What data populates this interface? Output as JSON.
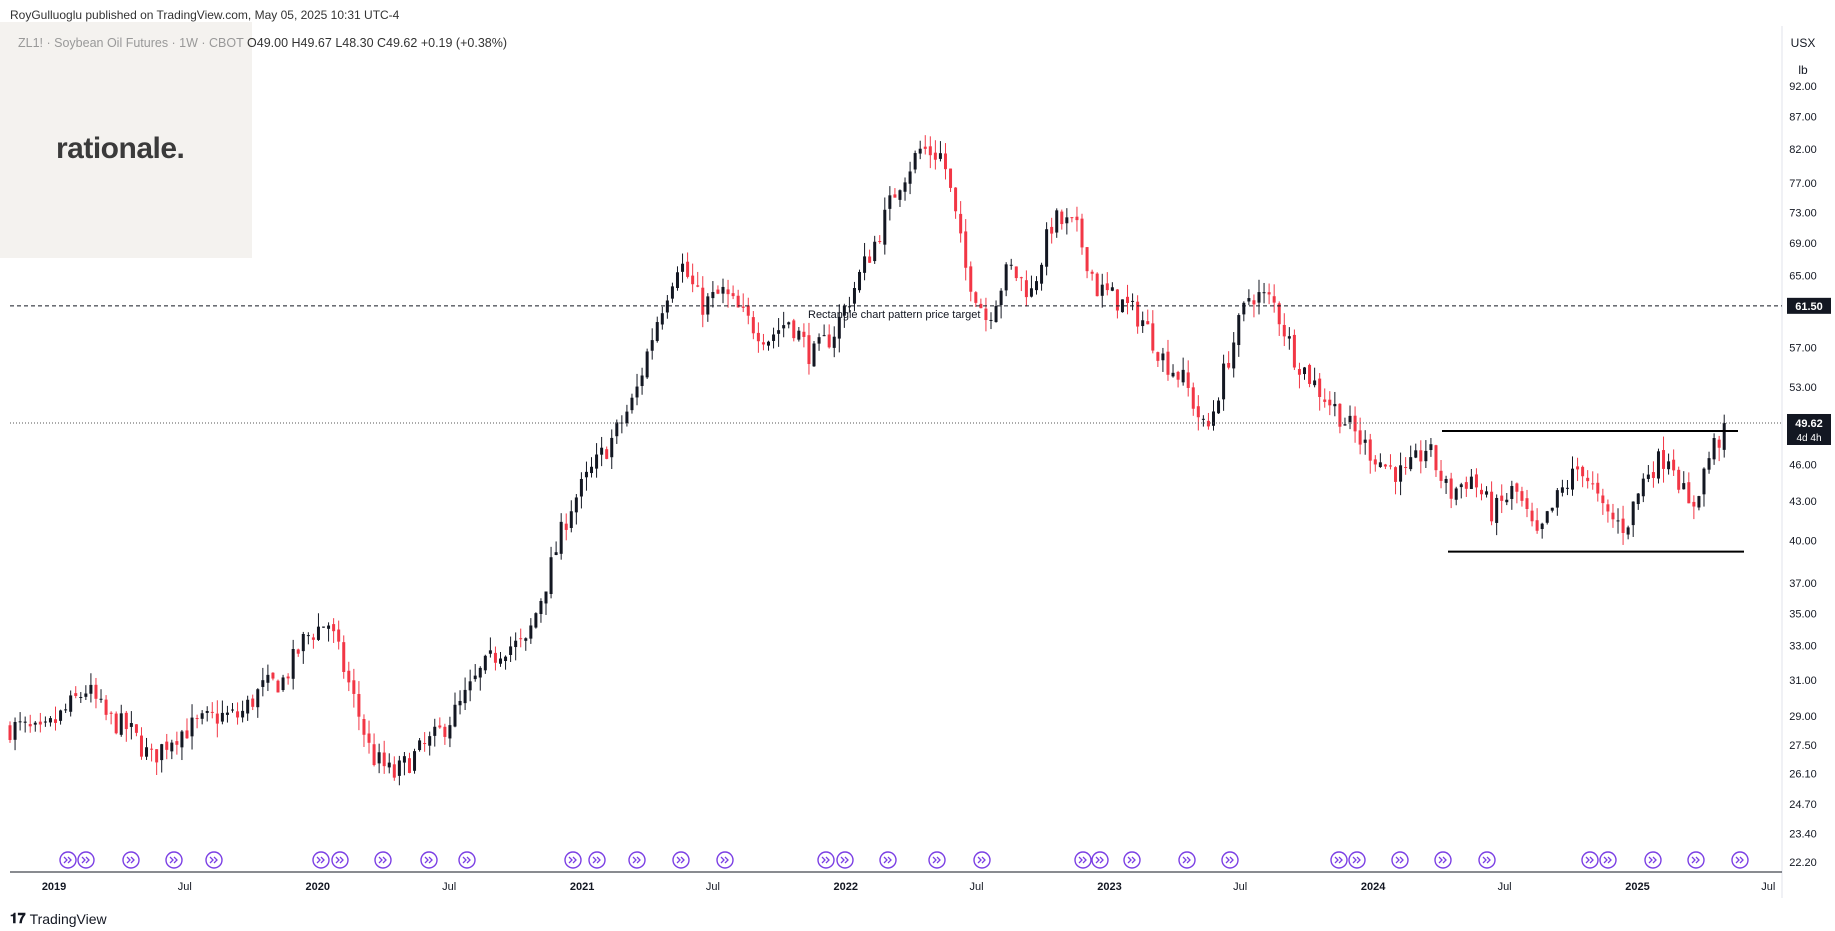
{
  "header": {
    "publisher": "RoyGulluoglu published on TradingView.com,",
    "timestamp": "May 05, 2025 10:31 UTC-4"
  },
  "symbol": {
    "name": "ZL1! · Soybean Oil Futures · 1W · CBOT",
    "open": "O49.00",
    "high": "H49.67",
    "low": "L48.30",
    "close": "C49.62",
    "change": "+0.19 (+0.38%)"
  },
  "watermark": {
    "text": "rationale."
  },
  "currency": {
    "line1": "USX",
    "line2": "lb"
  },
  "footer": {
    "brand": "TradingView",
    "icon": "tradingview-logo-icon"
  },
  "colors": {
    "up": "#131722",
    "down": "#f23645",
    "price_line": "#555555",
    "event_icon": "#7b3fe4"
  },
  "chart_data": {
    "type": "candlestick",
    "timeframe": "1W",
    "scale": "log",
    "y_axis_ticks": [
      92.0,
      87.0,
      82.0,
      77.0,
      73.0,
      69.0,
      65.0,
      61.5,
      57.0,
      53.0,
      49.62,
      46.0,
      43.0,
      40.0,
      37.0,
      35.0,
      33.0,
      31.0,
      29.0,
      27.5,
      26.1,
      24.7,
      23.4,
      22.2
    ],
    "ylim": [
      22.2,
      92.0
    ],
    "x_axis_labels": [
      "2019",
      "Jul",
      "2020",
      "Jul",
      "2021",
      "Jul",
      "2022",
      "Jul",
      "2023",
      "Jul",
      "2024",
      "Jul",
      "2025",
      "Jul"
    ],
    "current_price": {
      "value": "49.62",
      "countdown": "4d 4h"
    },
    "target_line": {
      "value": 61.5,
      "label": "61.50",
      "annotation": "Rectangle chart pattern price target"
    },
    "rectangle_pattern": {
      "resistance": 48.9,
      "support": 39.2
    },
    "monthly_closes": [
      [
        "2018-11",
        28.4
      ],
      [
        "2018-12",
        28.0
      ],
      [
        "2019-01",
        29.2
      ],
      [
        "2019-02",
        30.5
      ],
      [
        "2019-03",
        28.9
      ],
      [
        "2019-04",
        28.3
      ],
      [
        "2019-05",
        26.8
      ],
      [
        "2019-06",
        28.0
      ],
      [
        "2019-07",
        28.5
      ],
      [
        "2019-08",
        29.0
      ],
      [
        "2019-09",
        29.0
      ],
      [
        "2019-10",
        30.5
      ],
      [
        "2019-11",
        31.0
      ],
      [
        "2019-12",
        33.5
      ],
      [
        "2020-01",
        34.5
      ],
      [
        "2020-02",
        30.5
      ],
      [
        "2020-03",
        27.0
      ],
      [
        "2020-04",
        26.0
      ],
      [
        "2020-05",
        27.0
      ],
      [
        "2020-06",
        28.0
      ],
      [
        "2020-07",
        29.5
      ],
      [
        "2020-08",
        31.5
      ],
      [
        "2020-09",
        33.0
      ],
      [
        "2020-10",
        33.0
      ],
      [
        "2020-11",
        37.5
      ],
      [
        "2020-12",
        42.5
      ],
      [
        "2021-01",
        45.5
      ],
      [
        "2021-02",
        48.5
      ],
      [
        "2021-03",
        52.0
      ],
      [
        "2021-04",
        60.0
      ],
      [
        "2021-05",
        67.0
      ],
      [
        "2021-06",
        61.5
      ],
      [
        "2021-07",
        63.0
      ],
      [
        "2021-08",
        60.0
      ],
      [
        "2021-09",
        58.0
      ],
      [
        "2021-10",
        60.0
      ],
      [
        "2021-11",
        56.0
      ],
      [
        "2021-12",
        58.5
      ],
      [
        "2022-01",
        64.0
      ],
      [
        "2022-02",
        70.0
      ],
      [
        "2022-03",
        77.0
      ],
      [
        "2022-04",
        82.0
      ],
      [
        "2022-05",
        81.0
      ],
      [
        "2022-06",
        66.0
      ],
      [
        "2022-07",
        60.0
      ],
      [
        "2022-08",
        66.0
      ],
      [
        "2022-09",
        63.0
      ],
      [
        "2022-10",
        72.0
      ],
      [
        "2022-11",
        71.0
      ],
      [
        "2022-12",
        63.5
      ],
      [
        "2023-01",
        62.0
      ],
      [
        "2023-02",
        60.0
      ],
      [
        "2023-03",
        56.0
      ],
      [
        "2023-04",
        53.5
      ],
      [
        "2023-05",
        48.5
      ],
      [
        "2023-06",
        56.0
      ],
      [
        "2023-07",
        63.0
      ],
      [
        "2023-08",
        62.0
      ],
      [
        "2023-09",
        56.0
      ],
      [
        "2023-10",
        53.0
      ],
      [
        "2023-11",
        50.5
      ],
      [
        "2023-12",
        48.0
      ],
      [
        "2024-01",
        46.0
      ],
      [
        "2024-02",
        45.0
      ],
      [
        "2024-03",
        47.5
      ],
      [
        "2024-04",
        43.5
      ],
      [
        "2024-05",
        45.0
      ],
      [
        "2024-06",
        42.0
      ],
      [
        "2024-07",
        44.0
      ],
      [
        "2024-08",
        40.0
      ],
      [
        "2024-09",
        43.5
      ],
      [
        "2024-10",
        46.0
      ],
      [
        "2024-11",
        42.0
      ],
      [
        "2024-12",
        41.0
      ],
      [
        "2025-01",
        45.5
      ],
      [
        "2025-02",
        47.0
      ],
      [
        "2025-03",
        42.0
      ],
      [
        "2025-04",
        47.5
      ],
      [
        "2025-05",
        49.62
      ]
    ]
  }
}
